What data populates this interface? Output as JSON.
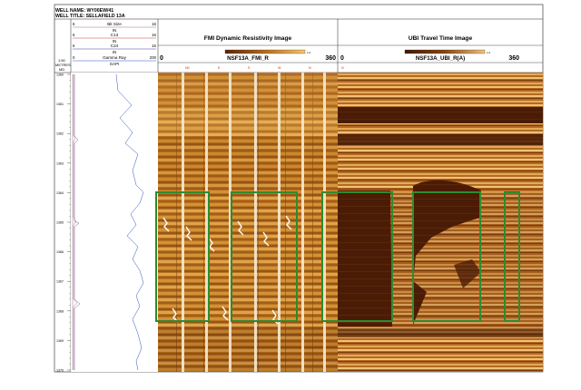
{
  "header": {
    "well_name": "WELL NAME: WY00EW/41",
    "well_title": "WELL TITLE: SELLAFIELD 13A"
  },
  "curve_headers": [
    {
      "left": "6",
      "name": "Bit Size",
      "right": "16",
      "unit": "IN",
      "color": "#a07070"
    },
    {
      "left": "6",
      "name": "C13",
      "right": "16",
      "unit": "IN",
      "color": "#c04040"
    },
    {
      "left": "6",
      "name": "C24",
      "right": "16",
      "unit": "IN",
      "color": "#4040a0"
    },
    {
      "left": "0",
      "name": "Gamma Ray",
      "right": "200",
      "unit": "GAPI",
      "color": "#3050c0"
    }
  ],
  "depth_header": {
    "scale": "1:50",
    "unit": "METRES",
    "ref": "MD"
  },
  "depth_ticks": [
    "1360",
    "1361",
    "1362",
    "1363",
    "1364",
    "1365",
    "1366",
    "1367",
    "1368",
    "1369",
    "1370"
  ],
  "images": [
    {
      "title": "FMI Dynamic Resistivity Image",
      "channel": "NSF13A_FMI_R",
      "min": "0",
      "max": "360",
      "palette": [
        "#5a2208",
        "#b86a18",
        "#f4c766"
      ],
      "azimuth_labels": [
        "N0",
        "E",
        "S",
        "W",
        "N"
      ]
    },
    {
      "title": "UBI Travel Time Image",
      "channel": "NSF13A_UBI_R(A)",
      "min": "0",
      "max": "360",
      "palette": [
        "#3e1804",
        "#8a4410",
        "#f2c276"
      ],
      "azimuth_labels": [
        "N"
      ]
    }
  ],
  "highlight_color": "#2e8b2e"
}
